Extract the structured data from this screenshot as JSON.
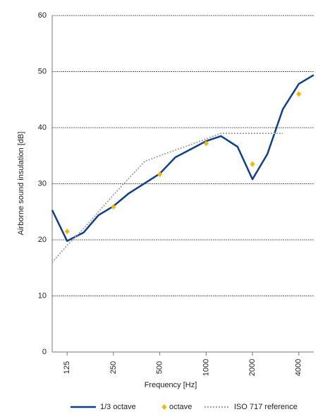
{
  "chart_data": {
    "type": "line",
    "x_label": "Frequency [Hz]",
    "y_label": "Airborne sound insulation [dB]",
    "xlog": true,
    "xlim": [
      100,
      5000
    ],
    "xticks": [
      125,
      250,
      500,
      1000,
      2000,
      4000
    ],
    "ylim": [
      0,
      60
    ],
    "yticks": [
      0,
      10,
      20,
      30,
      40,
      50,
      60
    ],
    "grid": true,
    "series": [
      {
        "name": "1/3 octave",
        "color": "#0d3f8f",
        "style": "solid",
        "x": [
          100,
          125,
          160,
          200,
          250,
          315,
          400,
          500,
          630,
          800,
          1000,
          1250,
          1600,
          2000,
          2500,
          3150,
          4000,
          5000
        ],
        "values": [
          25.3,
          19.8,
          21.3,
          24.4,
          26.0,
          28.3,
          30.1,
          31.8,
          34.7,
          36.2,
          37.6,
          38.5,
          36.6,
          30.8,
          35.3,
          43.3,
          47.8,
          49.4
        ]
      },
      {
        "name": "octave",
        "color": "#f2b705",
        "style": "markers",
        "x": [
          125,
          250,
          500,
          1000,
          2000,
          4000
        ],
        "values": [
          21.5,
          25.9,
          31.7,
          37.2,
          33.5,
          46.0
        ]
      },
      {
        "name": "ISO 717 reference",
        "color": "#a6a6a6",
        "style": "dotted",
        "x": [
          100,
          125,
          160,
          200,
          250,
          315,
          400,
          500,
          630,
          800,
          1000,
          1250,
          1600,
          2000,
          2500,
          3150
        ],
        "values": [
          16,
          19,
          22,
          25,
          28,
          31,
          34,
          35,
          36,
          37,
          38,
          39,
          39,
          39,
          39,
          39
        ]
      }
    ]
  }
}
